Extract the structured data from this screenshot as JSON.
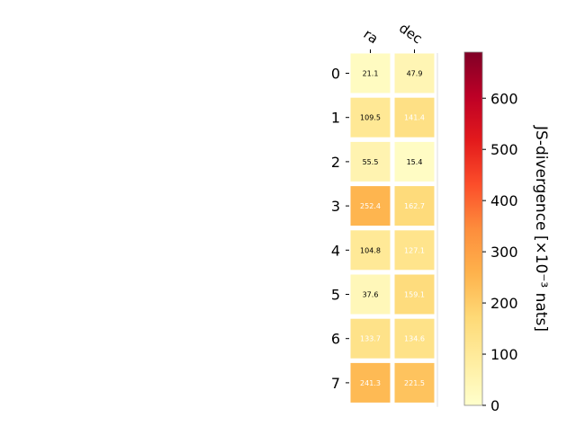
{
  "chart_data": {
    "type": "heatmap",
    "title": "",
    "columns": [
      "ra",
      "dec"
    ],
    "rows": [
      "0",
      "1",
      "2",
      "3",
      "4",
      "5",
      "6",
      "7"
    ],
    "values": [
      [
        21.1,
        47.9
      ],
      [
        109.5,
        141.4
      ],
      [
        55.5,
        15.4
      ],
      [
        252.4,
        162.7
      ],
      [
        104.8,
        127.1
      ],
      [
        37.6,
        159.1
      ],
      [
        133.7,
        134.6
      ],
      [
        241.3,
        221.5
      ]
    ],
    "value_labels": [
      [
        "21.1",
        "47.9"
      ],
      [
        "109.5",
        "141.4"
      ],
      [
        "55.5",
        "15.4"
      ],
      [
        "252.4",
        "162.7"
      ],
      [
        "104.8",
        "127.1"
      ],
      [
        "37.6",
        "159.1"
      ],
      [
        "133.7",
        "134.6"
      ],
      [
        "241.3",
        "221.5"
      ]
    ],
    "colorbar": {
      "label": "JS-divergence [×10⁻³ nats]",
      "range": [
        0,
        690
      ],
      "ticks": [
        0,
        100,
        200,
        300,
        400,
        500,
        600
      ],
      "tick_labels": [
        "0",
        "100",
        "200",
        "300",
        "400",
        "500",
        "600"
      ],
      "colormap": "YlOrRd"
    },
    "text_color_threshold": 120,
    "colors": {
      "ylorrd": [
        "#ffffcc",
        "#ffeda0",
        "#fed976",
        "#feb24c",
        "#fd8d3c",
        "#fc4e2a",
        "#e31a1c",
        "#bd0026",
        "#800026"
      ],
      "cell_border": "#ffffff",
      "label_dark": "#000000",
      "label_light": "#ffffff"
    }
  }
}
